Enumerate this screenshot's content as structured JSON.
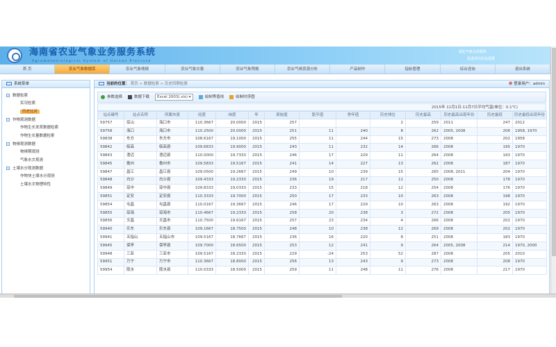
{
  "header": {
    "title": "海南省农业气象业务服务系统",
    "subtitle": "Agrometeorological System of Hainan Province",
    "slogan": [
      "强化气象为农服务",
      "促进现代农业发展"
    ]
  },
  "nav": [
    "首 页",
    "农业气象数据库",
    "农业气象情报",
    "农业气象灾害",
    "农业气象预报",
    "农业气候资源分析",
    "产品制作",
    "指标管理",
    "综合咨询",
    "退出系统"
  ],
  "nav_active": 1,
  "sidebar": {
    "title": "系统菜单",
    "groups": [
      {
        "label": "数据检索",
        "items": [
          "实况检索",
          "历史比对"
        ]
      },
      {
        "label": "作物观测数据",
        "items": [
          "作物生长发育数据检索",
          "作物生长量数据检索"
        ]
      },
      {
        "label": "物候观测数据",
        "items": [
          "物候期观测",
          "气象水文观测"
        ]
      },
      {
        "label": "土壤水分观测数据",
        "items": [
          "作物块土壤水分观测",
          "土壤水文物理特性"
        ]
      }
    ],
    "selected": "历史比对"
  },
  "breadcrumb": {
    "label": "当前的位置：",
    "path": "首页 > 数据检索 > 历史同期检索"
  },
  "user": "登录用户：admin",
  "toolbar": {
    "params": "参数选择",
    "download": "数据下载",
    "format": "Excel 2003(.xls)",
    "contour": "绘制等值线",
    "timeseries": "绘制时序图"
  },
  "table": {
    "title": "2015年 11月1日-11月7日平均气温(单位：0.1℃)",
    "columns": [
      "站点编号",
      "站点名称",
      "所属市县",
      "经度",
      "纬度",
      "年",
      "原始值",
      "距平值",
      "常年值",
      "历史排位",
      "历史最高",
      "历史最高出现年份",
      "历史最低",
      "历史最低出现年份"
    ],
    "rows": [
      [
        "59757",
        "琼山",
        "海口市",
        "110.3667",
        "20.0000",
        "2015",
        "257",
        "",
        "",
        "2",
        "259",
        "2011",
        "247",
        "2012"
      ],
      [
        "59758",
        "海口",
        "海口市",
        "110.2500",
        "20.0000",
        "2015",
        "251",
        "11",
        "240",
        "8",
        "262",
        "2005, 2008",
        "206",
        "1958, 1970"
      ],
      [
        "59838",
        "东方",
        "东方市",
        "108.6167",
        "19.1000",
        "2015",
        "255",
        "11",
        "244",
        "15",
        "273",
        "2008",
        "202",
        "1958"
      ],
      [
        "59842",
        "临高",
        "临高县",
        "109.6833",
        "19.9000",
        "2015",
        "243",
        "11",
        "232",
        "14",
        "266",
        "2008",
        "195",
        "1970"
      ],
      [
        "59843",
        "澄迈",
        "澄迈县",
        "110.0000",
        "19.7333",
        "2015",
        "246",
        "17",
        "229",
        "11",
        "264",
        "2008",
        "193",
        "1970"
      ],
      [
        "59845",
        "儋州",
        "儋州市",
        "109.5833",
        "19.5167",
        "2015",
        "241",
        "14",
        "227",
        "13",
        "262",
        "2008",
        "187",
        "1970"
      ],
      [
        "59847",
        "昌江",
        "昌江县",
        "109.0500",
        "19.2667",
        "2015",
        "249",
        "10",
        "239",
        "15",
        "265",
        "2008, 2011",
        "204",
        "1970"
      ],
      [
        "59848",
        "白沙",
        "白沙县",
        "109.4333",
        "19.2333",
        "2015",
        "236",
        "19",
        "217",
        "11",
        "250",
        "2008",
        "178",
        "1970"
      ],
      [
        "59849",
        "琼中",
        "琼中县",
        "109.8333",
        "19.0333",
        "2015",
        "233",
        "15",
        "218",
        "12",
        "254",
        "2008",
        "176",
        "1970"
      ],
      [
        "59851",
        "定安",
        "定安县",
        "110.3333",
        "19.7000",
        "2015",
        "250",
        "17",
        "233",
        "10",
        "263",
        "2008",
        "198",
        "1970"
      ],
      [
        "59854",
        "屯昌",
        "屯昌县",
        "110.0167",
        "19.3667",
        "2015",
        "246",
        "17",
        "229",
        "10",
        "263",
        "2008",
        "192",
        "1970"
      ],
      [
        "59855",
        "琼海",
        "琼海市",
        "110.4667",
        "19.2333",
        "2015",
        "258",
        "20",
        "238",
        "3",
        "272",
        "2008",
        "205",
        "1970"
      ],
      [
        "59856",
        "文昌",
        "文昌市",
        "110.7500",
        "19.6167",
        "2015",
        "257",
        "23",
        "234",
        "4",
        "266",
        "2008",
        "202",
        "1970"
      ],
      [
        "59940",
        "乐东",
        "乐东县",
        "109.1667",
        "18.7500",
        "2015",
        "248",
        "10",
        "238",
        "12",
        "269",
        "2008",
        "202",
        "1970"
      ],
      [
        "59941",
        "五指山",
        "五指山市",
        "109.5167",
        "18.7667",
        "2015",
        "236",
        "16",
        "220",
        "8",
        "251",
        "2008",
        "183",
        "1970"
      ],
      [
        "59945",
        "保亭",
        "保亭县",
        "109.7000",
        "18.6500",
        "2015",
        "253",
        "12",
        "241",
        "9",
        "264",
        "2005, 2008",
        "214",
        "1970, 2000"
      ],
      [
        "59948",
        "三亚",
        "三亚市",
        "109.5167",
        "18.2333",
        "2015",
        "229",
        "-24",
        "253",
        "52",
        "287",
        "2008",
        "205",
        "2010"
      ],
      [
        "59951",
        "万宁",
        "万宁市",
        "110.3667",
        "18.8000",
        "2015",
        "256",
        "13",
        "243",
        "9",
        "273",
        "2008",
        "208",
        "1970"
      ],
      [
        "59954",
        "陵水",
        "陵水县",
        "110.0333",
        "18.5000",
        "2015",
        "259",
        "11",
        "248",
        "11",
        "276",
        "2008",
        "217",
        "1970"
      ]
    ]
  },
  "colors": {
    "accent": "#f6a93a",
    "brand": "#1a5fb0",
    "border": "#a9cdf0"
  }
}
